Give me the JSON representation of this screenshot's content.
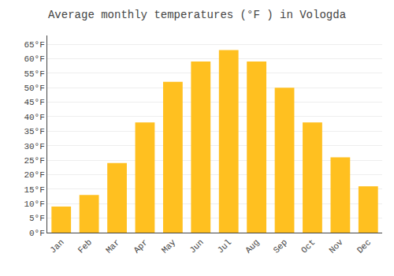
{
  "chart_data": {
    "type": "bar",
    "title": "Average monthly temperatures (°F ) in Vologda",
    "categories": [
      "Jan",
      "Feb",
      "Mar",
      "Apr",
      "May",
      "Jun",
      "Jul",
      "Aug",
      "Sep",
      "Oct",
      "Nov",
      "Dec"
    ],
    "values": [
      9,
      13,
      24,
      38,
      52,
      59,
      63,
      59,
      50,
      38,
      26,
      16
    ],
    "color": "#FFC020",
    "ylim": [
      0,
      68
    ],
    "yticks": [
      {
        "value": 0,
        "label": "0°F"
      },
      {
        "value": 5,
        "label": "5°F"
      },
      {
        "value": 10,
        "label": "10°F"
      },
      {
        "value": 15,
        "label": "15°F"
      },
      {
        "value": 20,
        "label": "20°F"
      },
      {
        "value": 25,
        "label": "25°F"
      },
      {
        "value": 30,
        "label": "30°F"
      },
      {
        "value": 35,
        "label": "35°F"
      },
      {
        "value": 40,
        "label": "40°F"
      },
      {
        "value": 45,
        "label": "45°F"
      },
      {
        "value": 50,
        "label": "50°F"
      },
      {
        "value": 55,
        "label": "55°F"
      },
      {
        "value": 60,
        "label": "60°F"
      },
      {
        "value": 65,
        "label": "65°F"
      }
    ],
    "grid": true
  }
}
